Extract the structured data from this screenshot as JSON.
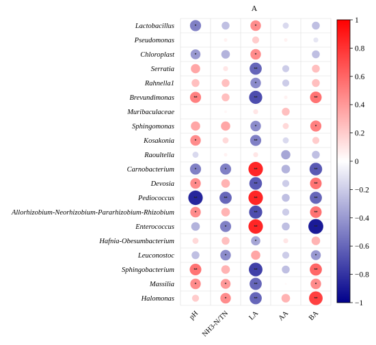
{
  "chart_data": {
    "type": "heatmap",
    "title": "A",
    "rows": [
      "Lactobacillus",
      "Pseudomonas",
      "Chloroplast",
      "Serratia",
      "Rahnella1",
      "Brevundimonas",
      "Muribaculaceae",
      "Sphingomonas",
      "Kosakonia",
      "Raoultella",
      "Carnobacterium",
      "Devosia",
      "Pediococcus",
      "Allorhizobium-Neorhizobium-Pararhizobium-Rhizobium",
      "Enterococcus",
      "Hafnia-Obesumbacterium",
      "Leuconostoc",
      "Sphingobacterium",
      "Massilia",
      "Halomonas"
    ],
    "columns": [
      "pH",
      "NH3-N/TN",
      "LA",
      "AA",
      "BA"
    ],
    "values": [
      [
        -0.5,
        -0.25,
        0.45,
        -0.15,
        -0.25
      ],
      [
        0.0,
        0.05,
        0.2,
        0.05,
        -0.1
      ],
      [
        -0.4,
        -0.3,
        0.45,
        0.0,
        -0.25
      ],
      [
        0.35,
        0.1,
        -0.6,
        -0.2,
        0.25
      ],
      [
        0.25,
        0.25,
        -0.45,
        -0.2,
        0.25
      ],
      [
        0.5,
        0.25,
        -0.7,
        0.05,
        0.55
      ],
      [
        0.0,
        0.03,
        0.1,
        0.25,
        0.0
      ],
      [
        0.35,
        0.35,
        -0.45,
        0.15,
        0.5
      ],
      [
        0.45,
        0.15,
        -0.5,
        -0.15,
        0.2
      ],
      [
        -0.15,
        0.05,
        0.1,
        -0.35,
        -0.25
      ],
      [
        -0.5,
        -0.5,
        0.85,
        -0.3,
        -0.65
      ],
      [
        0.45,
        0.3,
        -0.65,
        -0.2,
        0.55
      ],
      [
        -0.85,
        -0.6,
        0.85,
        -0.25,
        -0.6
      ],
      [
        0.45,
        0.3,
        -0.7,
        -0.2,
        0.55
      ],
      [
        -0.3,
        -0.5,
        0.85,
        -0.25,
        -0.9
      ],
      [
        0.15,
        0.25,
        -0.35,
        0.1,
        0.3
      ],
      [
        -0.25,
        -0.45,
        0.35,
        -0.2,
        -0.4
      ],
      [
        0.55,
        0.3,
        -0.75,
        -0.25,
        0.6
      ],
      [
        0.45,
        0.4,
        -0.6,
        0.02,
        0.45
      ],
      [
        0.2,
        0.45,
        -0.6,
        0.3,
        0.75
      ]
    ],
    "significance": [
      [
        "*",
        "",
        "*",
        "",
        ""
      ],
      [
        "",
        "",
        "",
        "",
        ""
      ],
      [
        "*",
        "",
        "*",
        "",
        ""
      ],
      [
        "",
        "",
        "**",
        "",
        ""
      ],
      [
        "",
        "",
        "*",
        "",
        ""
      ],
      [
        "**",
        "",
        "**",
        "",
        "**"
      ],
      [
        "",
        "",
        "",
        "",
        ""
      ],
      [
        "",
        "",
        "*",
        "",
        "*"
      ],
      [
        "*",
        "",
        "**",
        "",
        ""
      ],
      [
        "",
        "",
        "",
        "",
        ""
      ],
      [
        "*",
        "*",
        "**",
        "",
        "**"
      ],
      [
        "*",
        "",
        "**",
        "",
        "**"
      ],
      [
        "**",
        "**",
        "**",
        "",
        "**"
      ],
      [
        "*",
        "",
        "**",
        "",
        "**"
      ],
      [
        "",
        "*",
        "**",
        "",
        "**"
      ],
      [
        "",
        "",
        "*",
        "",
        ""
      ],
      [
        "",
        "*",
        "",
        "",
        "*"
      ],
      [
        "**",
        "",
        "**",
        "",
        "**"
      ],
      [
        "*",
        "*",
        "**",
        "",
        "*"
      ],
      [
        "",
        "*",
        "**",
        "",
        "**"
      ]
    ],
    "colorbar": {
      "min": -1,
      "max": 1,
      "ticks": [
        1,
        0.8,
        0.6,
        0.4,
        0.2,
        0,
        -0.2,
        -0.4,
        -0.6,
        -0.8,
        -1
      ],
      "tick_labels": [
        "1",
        "0.8",
        "0.6",
        "0.4",
        "0.2",
        "0",
        "−0.2",
        "−0.4",
        "−0.6",
        "−0.8",
        "−1"
      ],
      "negative_color": "#00008b",
      "zero_color": "#ffffff",
      "positive_color": "#ff0000"
    },
    "grid": true
  }
}
